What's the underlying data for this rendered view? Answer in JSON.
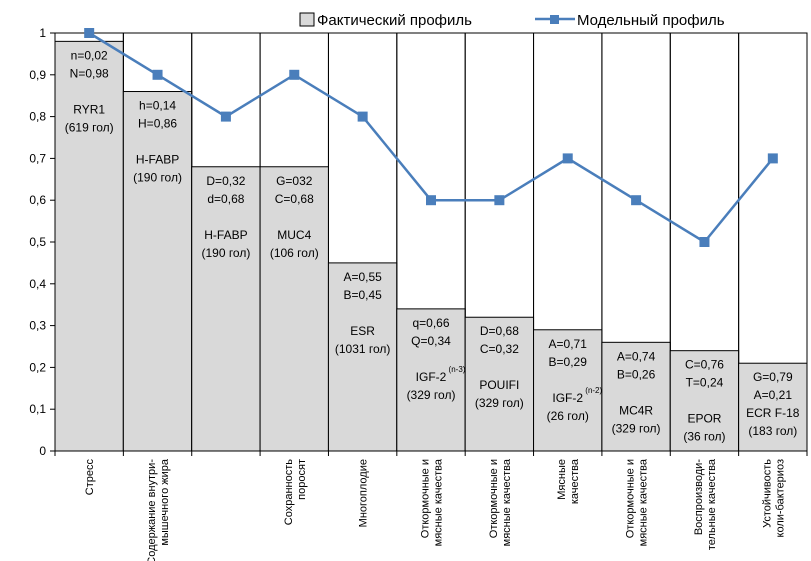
{
  "chart_data": {
    "type": "bar",
    "ylim": [
      0,
      1
    ],
    "yticks": [
      "0",
      "0,1",
      "0,2",
      "0,3",
      "0,4",
      "0,5",
      "0,6",
      "0,7",
      "0,8",
      "0,9",
      "1"
    ],
    "legend": {
      "position": "top-right",
      "bar_label": "Фактический профиль",
      "line_label": "Модельный профиль"
    },
    "colors": {
      "bar": "#d9d9d9",
      "line": "#4a7ebb",
      "axis": "#000000"
    },
    "categories": [
      {
        "lines": [
          "Стресс"
        ]
      },
      {
        "lines": [
          "Содержание внутри-",
          "мышечного жира"
        ]
      },
      {
        "lines": []
      },
      {
        "lines": [
          "Сохранность",
          "поросят"
        ]
      },
      {
        "lines": [
          "Многоплодие"
        ]
      },
      {
        "lines": [
          "Откормочные и",
          "мясные качества"
        ]
      },
      {
        "lines": [
          "Откормочные и",
          "мясные качества"
        ]
      },
      {
        "lines": [
          "Мясные",
          "качества"
        ]
      },
      {
        "lines": [
          "Откормочные и",
          "мясные качества"
        ]
      },
      {
        "lines": [
          "Воспроизводи-",
          "тельные качества"
        ]
      },
      {
        "lines": [
          "Устойчивость",
          "коли-бактериоз"
        ]
      }
    ],
    "series": [
      {
        "name": "Фактический профиль",
        "type": "bar",
        "values": [
          0.98,
          0.86,
          0.68,
          0.68,
          0.45,
          0.34,
          0.32,
          0.29,
          0.26,
          0.24,
          0.21
        ]
      },
      {
        "name": "Модельный профиль",
        "type": "line",
        "values": [
          1.0,
          0.9,
          0.8,
          0.9,
          0.8,
          0.6,
          0.6,
          0.7,
          0.6,
          0.5,
          0.7
        ]
      }
    ],
    "bar_labels": [
      {
        "lines": [
          "n=0,02",
          "N=0,98",
          "",
          "RYR1",
          "(619 гол)"
        ]
      },
      {
        "lines": [
          "h=0,14",
          "H=0,86",
          "",
          "H-FABP",
          "(190 гол)"
        ]
      },
      {
        "lines": [
          "D=0,32",
          "d=0,68",
          "",
          "H-FABP",
          "(190 гол)"
        ]
      },
      {
        "lines": [
          "G=032",
          "C=0,68",
          "",
          "MUC4",
          "(106 гол)"
        ]
      },
      {
        "lines": [
          "A=0,55",
          "B=0,45",
          "",
          "ESR",
          "(1031 гол)"
        ]
      },
      {
        "lines": [
          "q=0,66",
          "Q=0,34",
          "",
          "IGF-2",
          "(329 гол)"
        ],
        "sup": "(n-3)"
      },
      {
        "lines": [
          "D=0,68",
          "C=0,32",
          "",
          "POUIFI",
          "(329 гол)"
        ]
      },
      {
        "lines": [
          "A=0,71",
          "B=0,29",
          "",
          "IGF-2",
          "(26 гол)"
        ],
        "sup": "(n-2)"
      },
      {
        "lines": [
          "A=0,74",
          "B=0,26",
          "",
          "MC4R",
          "(329 гол)"
        ]
      },
      {
        "lines": [
          "C=0,76",
          "T=0,24",
          "",
          "EPOR",
          "(36 гол)"
        ]
      },
      {
        "lines": [
          "G=0,79",
          "A=0,21",
          "ECR F-18",
          "(183 гол)"
        ]
      }
    ]
  }
}
